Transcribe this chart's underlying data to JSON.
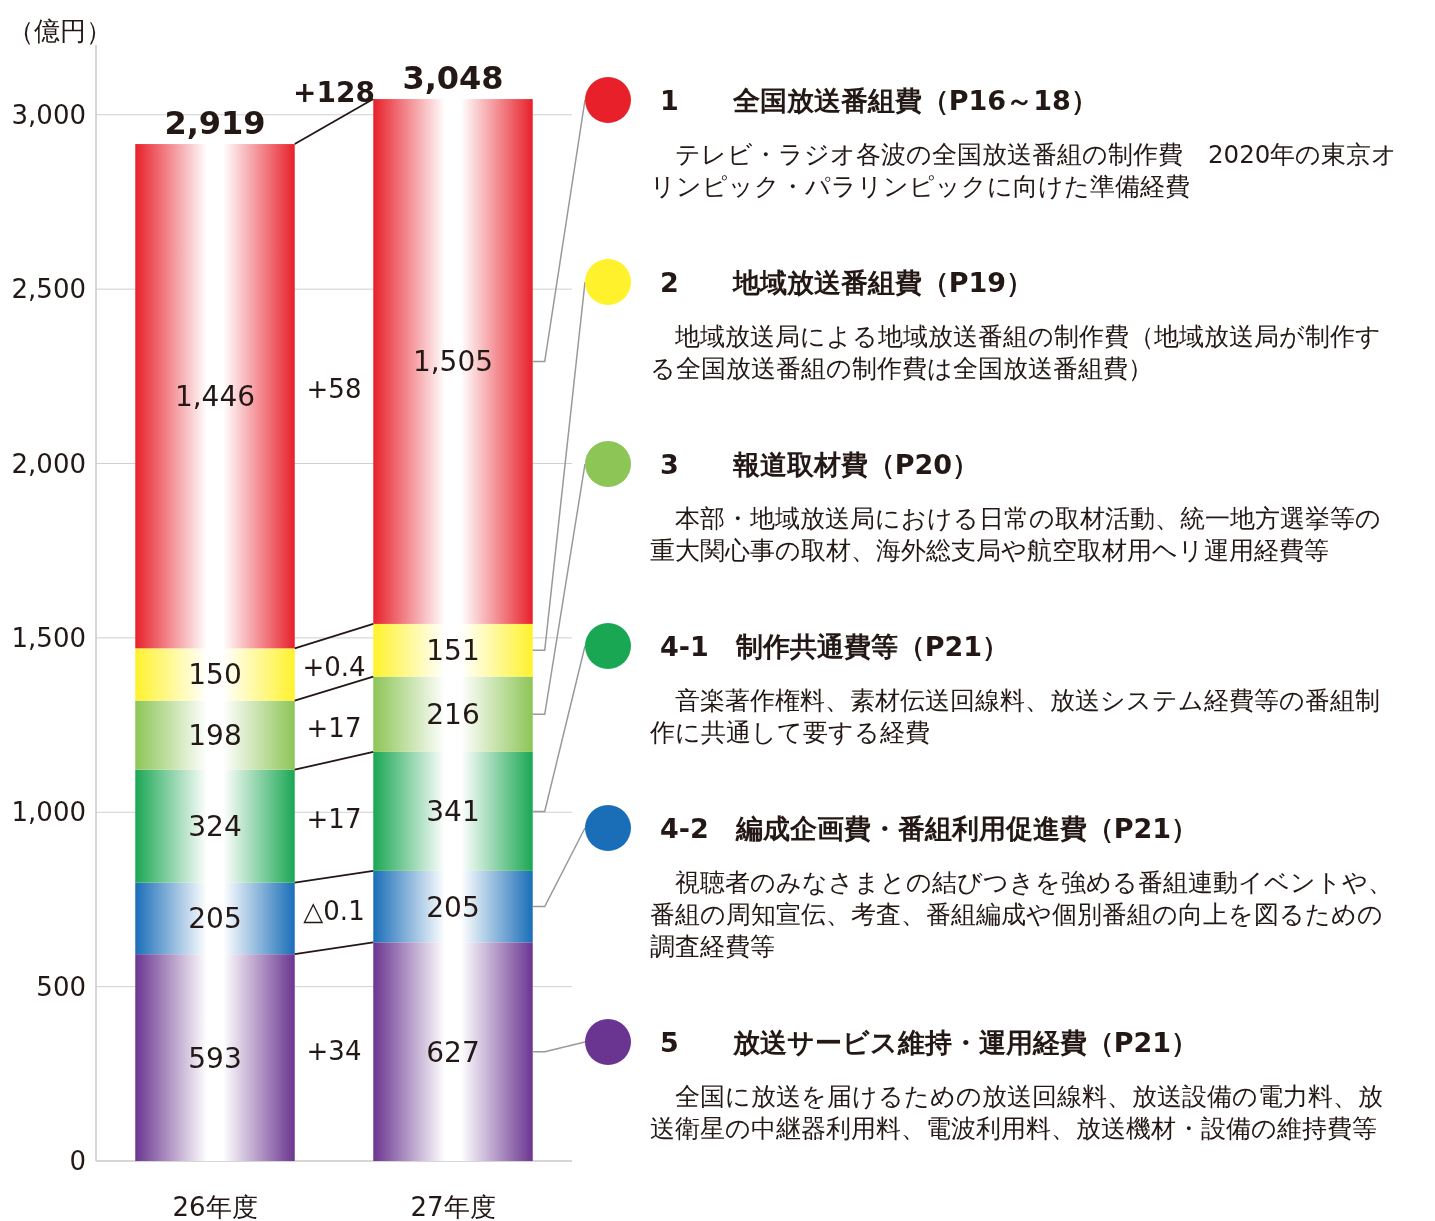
{
  "chart_data": {
    "type": "bar",
    "stacked": true,
    "ylabel": "（億円）",
    "categories": [
      "26年度",
      "27年度"
    ],
    "ylim": [
      0,
      3200
    ],
    "yticks": [
      0,
      {
        "value": 500,
        "label": "500"
      },
      {
        "value": 1000,
        "label": "1,000"
      },
      {
        "value": 1500,
        "label": "1,500"
      },
      {
        "value": 2000,
        "label": "2,000"
      },
      {
        "value": 2500,
        "label": "2,500"
      },
      {
        "value": 3000,
        "label": "3,000"
      }
    ],
    "grid": "y",
    "legend": "right",
    "series": [
      {
        "name": "5　　放送サービス維持・運用経費（P21）",
        "color": "#6a3590",
        "values": [
          593,
          627
        ],
        "value_labels": [
          "593",
          "627"
        ]
      },
      {
        "name": "4-2　編成企画費・番組利用促進費（P21）",
        "color": "#1a6eb8",
        "values": [
          205,
          205
        ],
        "value_labels": [
          "205",
          "205"
        ]
      },
      {
        "name": "4-1　制作共通費等（P21）",
        "color": "#1aa753",
        "values": [
          324,
          341
        ],
        "value_labels": [
          "324",
          "341"
        ]
      },
      {
        "name": "3　　報道取材費（P20）",
        "color": "#8dc556",
        "values": [
          198,
          216
        ],
        "value_labels": [
          "198",
          "216"
        ]
      },
      {
        "name": "2　　地域放送番組費（P19）",
        "color": "#fff22d",
        "values": [
          150,
          151
        ],
        "value_labels": [
          "150",
          "151"
        ]
      },
      {
        "name": "1　　全国放送番組費（P16～18）",
        "color": "#e8202a",
        "values": [
          1446,
          1505
        ],
        "value_labels": [
          "1,446",
          "1,505"
        ]
      }
    ],
    "totals": [
      "2,919",
      "3,048"
    ],
    "annotations": [
      "+34",
      "△0.1",
      "+17",
      "+17",
      "+0.4",
      "+58",
      "+128",
      "　全国に放送を届けるための放送回線料、放送設備の電力料、放送衛星の中継器利用料、電波利用料、放送機材・設備の維持費等",
      "　視聴者のみなさまとの結びつきを強める番組連動イベントや、番組の周知宣伝、考査、番組編成や個別番組の向上を図るための調査経費等",
      "　音楽著作権料、素材伝送回線料、放送システム経費等の番組制作に共通して要する経費",
      "　本部・地域放送局における日常の取材活動、統一地方選挙等の重大関心事の取材、海外総支局や航空取材用ヘリ運用経費等",
      "　地域放送局による地域放送番組の制作費（地域放送局が制作する全国放送番組の制作費は全国放送番組費）",
      "　テレビ・ラジオ各波の全国放送番組の制作費　2020年の東京オリンピック・パラリンピックに向けた準備経費"
    ]
  }
}
